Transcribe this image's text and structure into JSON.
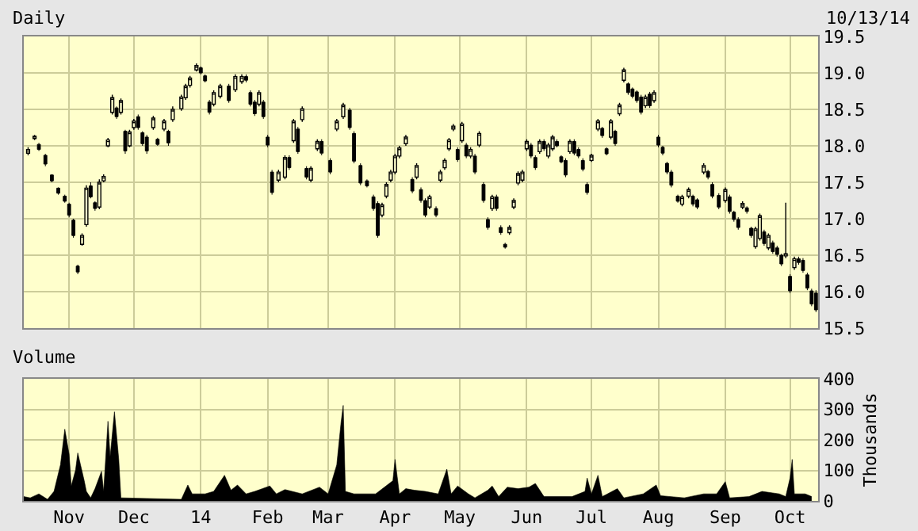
{
  "chart_data": [
    {
      "type": "candlestick",
      "title": "Daily",
      "annotations": [
        "10/13/14"
      ],
      "color": "#000000",
      "grid": true,
      "tick_labels": "y",
      "xlim": [
        "2013-10-11",
        "2014-10-14"
      ],
      "xticks": [
        "2013-11-01",
        "2013-12-01",
        "2014-01-01",
        "2014-02-01",
        "2014-03-01",
        "2014-04-01",
        "2014-05-01",
        "2014-06-01",
        "2014-07-01",
        "2014-08-01",
        "2014-09-01",
        "2014-10-01"
      ],
      "ylim": [
        15.5,
        19.5
      ],
      "yticks": [
        15.5,
        {
          "value": 16,
          "label": "16.0"
        },
        16.5,
        {
          "value": 17,
          "label": "17.0"
        },
        17.5,
        {
          "value": 18,
          "label": "18.0"
        },
        18.5,
        {
          "value": 19,
          "label": "19.0"
        },
        19.5
      ],
      "x": [
        "2013-10-13",
        "2013-10-16",
        "2013-10-18",
        "2013-10-21",
        "2013-10-24",
        "2013-10-27",
        "2013-10-30",
        "2013-11-01",
        "2013-11-03",
        "2013-11-05",
        "2013-11-07",
        "2013-11-09",
        "2013-11-11",
        "2013-11-13",
        "2013-11-15",
        "2013-11-17",
        "2013-11-19",
        "2013-11-21",
        "2013-11-23",
        "2013-11-25",
        "2013-11-27",
        "2013-11-29",
        "2013-12-01",
        "2013-12-03",
        "2013-12-05",
        "2013-12-07",
        "2013-12-10",
        "2013-12-12",
        "2013-12-15",
        "2013-12-17",
        "2013-12-19",
        "2013-12-23",
        "2013-12-25",
        "2013-12-27",
        "2013-12-30",
        "2014-01-01",
        "2014-01-03",
        "2014-01-05",
        "2014-01-07",
        "2014-01-10",
        "2014-01-14",
        "2014-01-17",
        "2014-01-20",
        "2014-01-22",
        "2014-01-24",
        "2014-01-26",
        "2014-01-28",
        "2014-01-30",
        "2014-02-01",
        "2014-02-03",
        "2014-02-06",
        "2014-02-09",
        "2014-02-11",
        "2014-02-13",
        "2014-02-15",
        "2014-02-17",
        "2014-02-19",
        "2014-02-21",
        "2014-02-24",
        "2014-02-26",
        "2014-03-02",
        "2014-03-05",
        "2014-03-08",
        "2014-03-11",
        "2014-03-13",
        "2014-03-16",
        "2014-03-19",
        "2014-03-22",
        "2014-03-24",
        "2014-03-26",
        "2014-03-28",
        "2014-03-30",
        "2014-04-01",
        "2014-04-03",
        "2014-04-06",
        "2014-04-09",
        "2014-04-11",
        "2014-04-13",
        "2014-04-15",
        "2014-04-17",
        "2014-04-20",
        "2014-04-22",
        "2014-04-24",
        "2014-04-26",
        "2014-04-28",
        "2014-04-30",
        "2014-05-02",
        "2014-05-04",
        "2014-05-06",
        "2014-05-08",
        "2014-05-10",
        "2014-05-12",
        "2014-05-14",
        "2014-05-16",
        "2014-05-18",
        "2014-05-20",
        "2014-05-22",
        "2014-05-24",
        "2014-05-26",
        "2014-05-28",
        "2014-05-30",
        "2014-06-01",
        "2014-06-03",
        "2014-06-05",
        "2014-06-07",
        "2014-06-09",
        "2014-06-11",
        "2014-06-13",
        "2014-06-15",
        "2014-06-17",
        "2014-06-19",
        "2014-06-21",
        "2014-06-23",
        "2014-06-25",
        "2014-06-27",
        "2014-06-29",
        "2014-07-01",
        "2014-07-04",
        "2014-07-06",
        "2014-07-08",
        "2014-07-10",
        "2014-07-12",
        "2014-07-14",
        "2014-07-16",
        "2014-07-18",
        "2014-07-20",
        "2014-07-22",
        "2014-07-24",
        "2014-07-26",
        "2014-07-28",
        "2014-07-30",
        "2014-08-01",
        "2014-08-03",
        "2014-08-05",
        "2014-08-07",
        "2014-08-10",
        "2014-08-12",
        "2014-08-15",
        "2014-08-17",
        "2014-08-19",
        "2014-08-22",
        "2014-08-24",
        "2014-08-26",
        "2014-08-29",
        "2014-09-01",
        "2014-09-03",
        "2014-09-05",
        "2014-09-07",
        "2014-09-09",
        "2014-09-11",
        "2014-09-13",
        "2014-09-15",
        "2014-09-17",
        "2014-09-19",
        "2014-09-21",
        "2014-09-23",
        "2014-09-25",
        "2014-09-27",
        "2014-09-29",
        "2014-10-01",
        "2014-10-03",
        "2014-10-05",
        "2014-10-07",
        "2014-10-09",
        "2014-10-11",
        "2014-10-13"
      ],
      "ohlc": [
        [
          17.9,
          17.98,
          17.87,
          17.95
        ],
        [
          18.1,
          18.15,
          18.08,
          18.13
        ],
        [
          18.02,
          18.04,
          17.93,
          17.95
        ],
        [
          17.87,
          17.89,
          17.72,
          17.75
        ],
        [
          17.6,
          17.61,
          17.5,
          17.52
        ],
        [
          17.42,
          17.43,
          17.33,
          17.35
        ],
        [
          17.31,
          17.33,
          17.22,
          17.24
        ],
        [
          17.2,
          17.22,
          17.02,
          17.05
        ],
        [
          16.98,
          17.0,
          16.74,
          16.77
        ],
        [
          16.35,
          16.37,
          16.24,
          16.27
        ],
        [
          16.65,
          16.8,
          16.63,
          16.77
        ],
        [
          16.92,
          17.46,
          16.89,
          17.42
        ],
        [
          17.45,
          17.5,
          17.28,
          17.3
        ],
        [
          17.22,
          17.24,
          17.11,
          17.14
        ],
        [
          17.16,
          17.54,
          17.13,
          17.5
        ],
        [
          17.52,
          17.61,
          17.5,
          17.58
        ],
        [
          18.0,
          18.11,
          17.98,
          18.08
        ],
        [
          18.46,
          18.7,
          18.43,
          18.66
        ],
        [
          18.52,
          18.54,
          18.37,
          18.4
        ],
        [
          18.46,
          18.65,
          18.43,
          18.62
        ],
        [
          18.2,
          18.22,
          17.89,
          17.93
        ],
        [
          18.0,
          18.22,
          17.98,
          18.19
        ],
        [
          18.25,
          18.37,
          18.22,
          18.34
        ],
        [
          18.4,
          18.43,
          18.22,
          18.25
        ],
        [
          18.18,
          18.2,
          18.0,
          18.03
        ],
        [
          18.12,
          18.15,
          17.89,
          17.93
        ],
        [
          18.25,
          18.41,
          18.22,
          18.38
        ],
        [
          18.09,
          18.11,
          18.0,
          18.02
        ],
        [
          18.23,
          18.37,
          18.2,
          18.34
        ],
        [
          18.2,
          18.22,
          18.0,
          18.04
        ],
        [
          18.36,
          18.54,
          18.33,
          18.5
        ],
        [
          18.51,
          18.7,
          18.48,
          18.67
        ],
        [
          18.66,
          18.85,
          18.63,
          18.82
        ],
        [
          18.83,
          18.96,
          18.8,
          18.93
        ],
        [
          19.04,
          19.13,
          19.02,
          19.1
        ],
        [
          19.07,
          19.09,
          18.98,
          19.0
        ],
        [
          18.96,
          18.98,
          18.87,
          18.89
        ],
        [
          18.6,
          18.63,
          18.43,
          18.46
        ],
        [
          18.57,
          18.76,
          18.54,
          18.73
        ],
        [
          18.68,
          18.85,
          18.65,
          18.82
        ],
        [
          18.82,
          18.85,
          18.59,
          18.62
        ],
        [
          18.77,
          18.98,
          18.74,
          18.95
        ],
        [
          18.88,
          18.98,
          18.85,
          18.95
        ],
        [
          18.95,
          18.98,
          18.87,
          18.9
        ],
        [
          18.73,
          18.76,
          18.54,
          18.57
        ],
        [
          18.6,
          18.63,
          18.41,
          18.44
        ],
        [
          18.57,
          18.76,
          18.54,
          18.73
        ],
        [
          18.6,
          18.63,
          18.37,
          18.4
        ],
        [
          18.12,
          18.15,
          17.98,
          18.01
        ],
        [
          17.64,
          17.67,
          17.33,
          17.36
        ],
        [
          17.53,
          17.67,
          17.5,
          17.64
        ],
        [
          17.57,
          17.87,
          17.54,
          17.84
        ],
        [
          17.84,
          17.87,
          17.67,
          17.7
        ],
        [
          18.07,
          18.37,
          18.04,
          18.34
        ],
        [
          18.23,
          18.26,
          17.89,
          17.92
        ],
        [
          18.36,
          18.54,
          18.33,
          18.51
        ],
        [
          17.69,
          17.72,
          17.54,
          17.57
        ],
        [
          17.53,
          17.72,
          17.5,
          17.69
        ],
        [
          17.96,
          18.09,
          17.93,
          18.06
        ],
        [
          18.06,
          18.09,
          17.87,
          17.9
        ],
        [
          17.8,
          17.83,
          17.61,
          17.64
        ],
        [
          18.23,
          18.37,
          18.2,
          18.34
        ],
        [
          18.4,
          18.59,
          18.37,
          18.56
        ],
        [
          18.49,
          18.52,
          18.22,
          18.25
        ],
        [
          18.17,
          18.2,
          17.76,
          17.79
        ],
        [
          17.73,
          17.76,
          17.46,
          17.49
        ],
        [
          17.52,
          17.54,
          17.43,
          17.45
        ],
        [
          17.3,
          17.33,
          17.11,
          17.14
        ],
        [
          17.21,
          17.24,
          16.74,
          16.77
        ],
        [
          17.05,
          17.22,
          17.02,
          17.19
        ],
        [
          17.31,
          17.5,
          17.28,
          17.47
        ],
        [
          17.53,
          17.67,
          17.5,
          17.64
        ],
        [
          17.64,
          17.89,
          17.61,
          17.86
        ],
        [
          17.86,
          18.0,
          17.83,
          17.97
        ],
        [
          18.03,
          18.15,
          18.0,
          18.12
        ],
        [
          17.54,
          17.57,
          17.35,
          17.38
        ],
        [
          17.57,
          17.76,
          17.54,
          17.73
        ],
        [
          17.4,
          17.43,
          17.22,
          17.25
        ],
        [
          17.25,
          17.28,
          17.02,
          17.05
        ],
        [
          17.16,
          17.33,
          17.13,
          17.3
        ],
        [
          17.14,
          17.17,
          17.02,
          17.05
        ],
        [
          17.53,
          17.67,
          17.5,
          17.64
        ],
        [
          17.7,
          17.83,
          17.67,
          17.8
        ],
        [
          17.96,
          18.11,
          17.93,
          18.08
        ],
        [
          18.23,
          18.3,
          18.2,
          18.27
        ],
        [
          17.95,
          17.98,
          17.78,
          17.81
        ],
        [
          18.07,
          18.33,
          18.04,
          18.3
        ],
        [
          18.01,
          18.04,
          17.83,
          17.86
        ],
        [
          17.86,
          17.98,
          17.83,
          17.95
        ],
        [
          17.86,
          17.89,
          17.61,
          17.64
        ],
        [
          18.01,
          18.2,
          17.98,
          18.17
        ],
        [
          17.47,
          17.5,
          17.22,
          17.25
        ],
        [
          16.99,
          17.02,
          16.85,
          16.88
        ],
        [
          17.14,
          17.33,
          17.11,
          17.3
        ],
        [
          17.3,
          17.33,
          17.11,
          17.14
        ],
        [
          16.88,
          16.91,
          16.78,
          16.81
        ],
        [
          16.65,
          16.67,
          16.59,
          16.61
        ],
        [
          16.81,
          16.91,
          16.78,
          16.88
        ],
        [
          17.16,
          17.28,
          17.13,
          17.25
        ],
        [
          17.49,
          17.65,
          17.46,
          17.62
        ],
        [
          17.53,
          17.67,
          17.5,
          17.64
        ],
        [
          17.96,
          18.09,
          17.93,
          18.06
        ],
        [
          18.01,
          18.04,
          17.83,
          17.86
        ],
        [
          17.84,
          17.87,
          17.67,
          17.7
        ],
        [
          17.92,
          18.09,
          17.89,
          18.06
        ],
        [
          18.06,
          18.09,
          17.93,
          17.96
        ],
        [
          17.86,
          18.04,
          17.83,
          18.01
        ],
        [
          17.96,
          18.15,
          17.93,
          18.12
        ],
        [
          18.06,
          18.09,
          17.98,
          18.0
        ],
        [
          17.85,
          17.87,
          17.76,
          17.78
        ],
        [
          17.8,
          17.83,
          17.57,
          17.6
        ],
        [
          17.92,
          18.09,
          17.89,
          18.06
        ],
        [
          18.06,
          18.09,
          17.87,
          17.9
        ],
        [
          17.95,
          17.98,
          17.83,
          17.86
        ],
        [
          17.8,
          17.83,
          17.65,
          17.68
        ],
        [
          17.47,
          17.5,
          17.33,
          17.36
        ],
        [
          17.8,
          17.89,
          17.78,
          17.87
        ],
        [
          18.23,
          18.37,
          18.2,
          18.34
        ],
        [
          18.24,
          18.26,
          18.11,
          18.14
        ],
        [
          17.96,
          17.98,
          17.87,
          17.89
        ],
        [
          18.12,
          18.37,
          18.09,
          18.34
        ],
        [
          18.2,
          18.22,
          18.0,
          18.03
        ],
        [
          18.44,
          18.59,
          18.41,
          18.56
        ],
        [
          18.9,
          19.07,
          18.87,
          19.04
        ],
        [
          18.85,
          18.87,
          18.7,
          18.73
        ],
        [
          18.78,
          18.8,
          18.65,
          18.68
        ],
        [
          18.74,
          18.76,
          18.59,
          18.62
        ],
        [
          18.67,
          18.7,
          18.43,
          18.46
        ],
        [
          18.55,
          18.7,
          18.52,
          18.67
        ],
        [
          18.71,
          18.74,
          18.52,
          18.55
        ],
        [
          18.62,
          18.76,
          18.59,
          18.73
        ],
        [
          18.12,
          18.15,
          17.98,
          18.01
        ],
        [
          17.98,
          18.0,
          17.87,
          17.9
        ],
        [
          17.76,
          17.78,
          17.61,
          17.64
        ],
        [
          17.64,
          17.67,
          17.43,
          17.46
        ],
        [
          17.31,
          17.33,
          17.22,
          17.24
        ],
        [
          17.2,
          17.33,
          17.17,
          17.3
        ],
        [
          17.31,
          17.43,
          17.28,
          17.4
        ],
        [
          17.31,
          17.33,
          17.17,
          17.2
        ],
        [
          17.26,
          17.28,
          17.13,
          17.16
        ],
        [
          17.64,
          17.76,
          17.61,
          17.73
        ],
        [
          17.65,
          17.67,
          17.54,
          17.57
        ],
        [
          17.47,
          17.5,
          17.28,
          17.31
        ],
        [
          17.32,
          17.35,
          17.13,
          17.16
        ],
        [
          17.25,
          17.43,
          17.22,
          17.4
        ],
        [
          17.3,
          17.33,
          17.07,
          17.1
        ],
        [
          17.09,
          17.11,
          16.96,
          16.99
        ],
        [
          16.99,
          17.02,
          16.85,
          16.88
        ],
        [
          17.16,
          17.24,
          17.13,
          17.21
        ],
        [
          17.15,
          17.17,
          17.07,
          17.1
        ],
        [
          16.87,
          16.89,
          16.74,
          16.77
        ],
        [
          16.62,
          16.89,
          16.59,
          16.86
        ],
        [
          16.73,
          17.07,
          16.7,
          17.04
        ],
        [
          16.82,
          16.85,
          16.63,
          16.66
        ],
        [
          16.6,
          16.8,
          16.57,
          16.77
        ],
        [
          16.67,
          16.7,
          16.52,
          16.55
        ],
        [
          16.6,
          16.63,
          16.48,
          16.51
        ],
        [
          16.5,
          16.52,
          16.35,
          16.38
        ],
        [
          16.49,
          17.22,
          16.46,
          16.52
        ],
        [
          16.21,
          16.24,
          15.98,
          16.01
        ],
        [
          16.33,
          16.48,
          16.3,
          16.45
        ],
        [
          16.45,
          16.48,
          16.37,
          16.4
        ],
        [
          16.43,
          16.46,
          16.26,
          16.29
        ],
        [
          16.23,
          16.26,
          16.02,
          16.05
        ],
        [
          16.01,
          16.04,
          15.8,
          15.83
        ],
        [
          15.98,
          16.02,
          15.72,
          15.75
        ]
      ]
    },
    {
      "type": "area",
      "title": "Volume",
      "ylabel": "Thousands",
      "color": "#000000",
      "grid": true,
      "xlim": [
        "2013-10-11",
        "2014-10-14"
      ],
      "xticks": [
        {
          "value": "2013-11-01",
          "label": "Nov"
        },
        {
          "value": "2013-12-01",
          "label": "Dec"
        },
        {
          "value": "2014-01-01",
          "label": "14"
        },
        {
          "value": "2014-02-01",
          "label": "Feb"
        },
        {
          "value": "2014-03-01",
          "label": "Mar"
        },
        {
          "value": "2014-04-01",
          "label": "Apr"
        },
        {
          "value": "2014-05-01",
          "label": "May"
        },
        {
          "value": "2014-06-01",
          "label": "Jun"
        },
        {
          "value": "2014-07-01",
          "label": "Jul"
        },
        {
          "value": "2014-08-01",
          "label": "Aug"
        },
        {
          "value": "2014-09-01",
          "label": "Sep"
        },
        {
          "value": "2014-10-01",
          "label": "Oct"
        }
      ],
      "ylim": [
        0,
        400
      ],
      "yticks": [
        0,
        100,
        200,
        300,
        400
      ],
      "x": [
        "2013-10-11",
        "2013-10-14",
        "2013-10-18",
        "2013-10-22",
        "2013-10-25",
        "2013-10-28",
        "2013-10-30",
        "2013-11-01",
        "2013-11-02",
        "2013-11-04",
        "2013-11-05",
        "2013-11-08",
        "2013-11-09",
        "2013-11-11",
        "2013-11-13",
        "2013-11-16",
        "2013-11-17",
        "2013-11-19",
        "2013-11-20",
        "2013-11-22",
        "2013-11-24",
        "2013-11-25",
        "2013-12-23",
        "2013-12-26",
        "2013-12-28",
        "2014-01-03",
        "2014-01-07",
        "2014-01-12",
        "2014-01-15",
        "2014-01-18",
        "2014-01-22",
        "2014-01-26",
        "2014-02-02",
        "2014-02-05",
        "2014-02-09",
        "2014-02-17",
        "2014-02-25",
        "2014-03-01",
        "2014-03-05",
        "2014-03-07",
        "2014-03-08",
        "2014-03-09",
        "2014-03-13",
        "2014-03-23",
        "2014-03-31",
        "2014-04-01",
        "2014-04-03",
        "2014-04-06",
        "2014-04-10",
        "2014-04-15",
        "2014-04-21",
        "2014-04-25",
        "2014-04-27",
        "2014-04-30",
        "2014-05-05",
        "2014-05-08",
        "2014-05-14",
        "2014-05-16",
        "2014-05-19",
        "2014-05-23",
        "2014-05-28",
        "2014-06-02",
        "2014-06-05",
        "2014-06-09",
        "2014-06-22",
        "2014-06-28",
        "2014-06-29",
        "2014-07-01",
        "2014-07-04",
        "2014-07-06",
        "2014-07-13",
        "2014-07-16",
        "2014-07-25",
        "2014-07-31",
        "2014-08-02",
        "2014-08-13",
        "2014-08-22",
        "2014-08-28",
        "2014-09-01",
        "2014-09-03",
        "2014-09-12",
        "2014-09-18",
        "2014-09-26",
        "2014-09-29",
        "2014-10-01",
        "2014-10-02",
        "2014-10-03",
        "2014-10-08",
        "2014-10-11"
      ],
      "values": [
        14,
        10,
        23,
        5,
        31,
        118,
        235,
        153,
        49,
        101,
        157,
        66,
        31,
        10,
        40,
        97,
        31,
        261,
        144,
        292,
        136,
        10,
        5,
        52,
        23,
        23,
        31,
        84,
        35,
        52,
        23,
        31,
        49,
        23,
        37,
        23,
        45,
        23,
        118,
        258,
        313,
        31,
        23,
        23,
        66,
        136,
        23,
        40,
        35,
        31,
        23,
        104,
        23,
        49,
        23,
        10,
        35,
        49,
        14,
        45,
        40,
        45,
        57,
        14,
        14,
        31,
        75,
        23,
        84,
        14,
        40,
        10,
        23,
        52,
        17,
        10,
        23,
        23,
        63,
        10,
        14,
        31,
        23,
        14,
        75,
        136,
        23,
        23,
        14
      ]
    }
  ]
}
